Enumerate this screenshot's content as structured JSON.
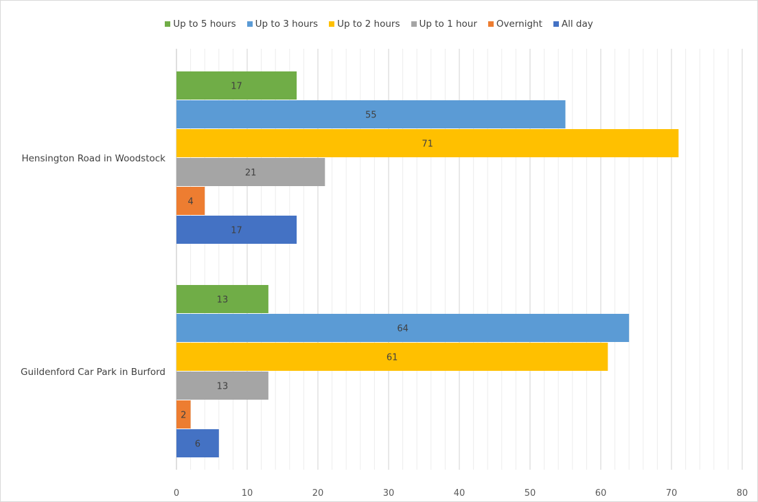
{
  "chart_data": {
    "type": "bar",
    "orientation": "horizontal",
    "categories": [
      "Hensington Road in Woodstock",
      "Guildenford Car Park in Burford"
    ],
    "series": [
      {
        "name": "Up to 5 hours",
        "color": "#70ad47",
        "values": [
          17,
          13
        ]
      },
      {
        "name": "Up to 3 hours",
        "color": "#5b9bd5",
        "values": [
          55,
          64
        ]
      },
      {
        "name": "Up to 2 hours",
        "color": "#ffc000",
        "values": [
          71,
          61
        ]
      },
      {
        "name": "Up to 1 hour",
        "color": "#a5a5a5",
        "values": [
          21,
          13
        ]
      },
      {
        "name": "Overnight",
        "color": "#ed7d31",
        "values": [
          4,
          2
        ]
      },
      {
        "name": "All day",
        "color": "#4472c4",
        "values": [
          17,
          6
        ]
      }
    ],
    "xlim": [
      0,
      80
    ],
    "x_ticks": [
      0,
      10,
      20,
      30,
      40,
      50,
      60,
      70,
      80
    ],
    "grid": true,
    "legend_position": "top",
    "title": "",
    "xlabel": "",
    "ylabel": ""
  }
}
